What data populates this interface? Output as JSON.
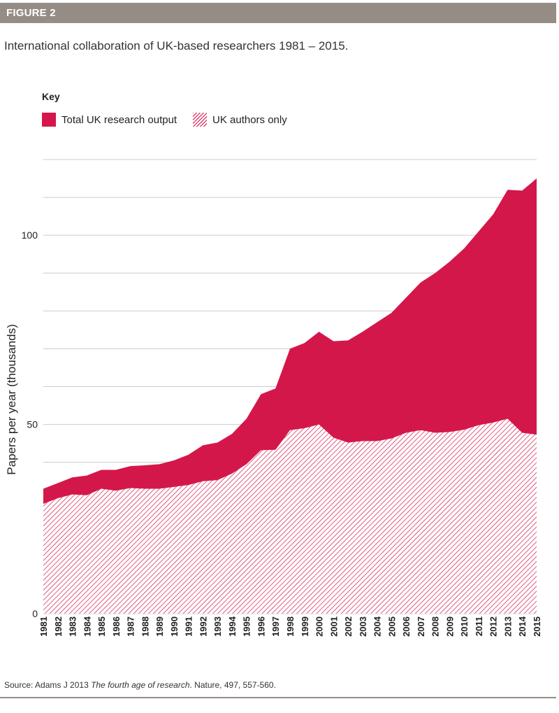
{
  "header": {
    "figure_label": "FIGURE 2"
  },
  "title": "International collaboration of UK-based researchers 1981 – 2015.",
  "key": {
    "title": "Key",
    "items": [
      {
        "label": "Total UK research output",
        "style": "solid"
      },
      {
        "label": "UK authors only",
        "style": "hatched"
      }
    ]
  },
  "source": {
    "prefix": "Source: Adams J 2013 ",
    "italic": "The fourth age of research",
    "suffix": ". Nature, 497, 557-560."
  },
  "colors": {
    "accent": "#d4174a",
    "header_bg": "#968c86",
    "grid": "#cccccc"
  },
  "chart_data": {
    "type": "area",
    "title": "",
    "xlabel": "",
    "ylabel": "Papers per year (thousands)",
    "ylim": [
      0,
      120
    ],
    "ytick_values": [
      0,
      50,
      100
    ],
    "ytick_labels": [
      "0",
      "50",
      "100"
    ],
    "grid_step": 10,
    "grid": true,
    "legend": "top-left",
    "x": [
      "1981",
      "1982",
      "1983",
      "1984",
      "1985",
      "1986",
      "1987",
      "1988",
      "1989",
      "1990",
      "1991",
      "1992",
      "1993",
      "1994",
      "1995",
      "1996",
      "1997",
      "1998",
      "1999",
      "2000",
      "2001",
      "2002",
      "2003",
      "2004",
      "2005",
      "2006",
      "2007",
      "2008",
      "2009",
      "2010",
      "2011",
      "2012",
      "2013",
      "2014",
      "2015"
    ],
    "series": [
      {
        "name": "Total UK research output",
        "style": "solid",
        "values": [
          33,
          34.5,
          36,
          36.5,
          38,
          38,
          39,
          39.2,
          39.5,
          40.5,
          42,
          44.5,
          45.2,
          47.5,
          51.5,
          58,
          59.5,
          70,
          71.5,
          74.5,
          72,
          72.2,
          74.5,
          77,
          79.5,
          83.5,
          87.5,
          90,
          93,
          96.5,
          101,
          105.5,
          112,
          111.8,
          115
        ]
      },
      {
        "name": "UK authors only",
        "style": "hatched",
        "values": [
          29,
          30.5,
          31.5,
          31.3,
          33,
          32.5,
          33.2,
          33,
          33,
          33.5,
          34,
          35,
          35.3,
          37,
          39.5,
          43.2,
          43.3,
          48.5,
          49,
          50,
          46.5,
          45.2,
          45.6,
          45.6,
          46.3,
          47.8,
          48.5,
          47.8,
          48,
          48.6,
          49.8,
          50.5,
          51.5,
          47.8,
          47.3
        ]
      }
    ]
  }
}
